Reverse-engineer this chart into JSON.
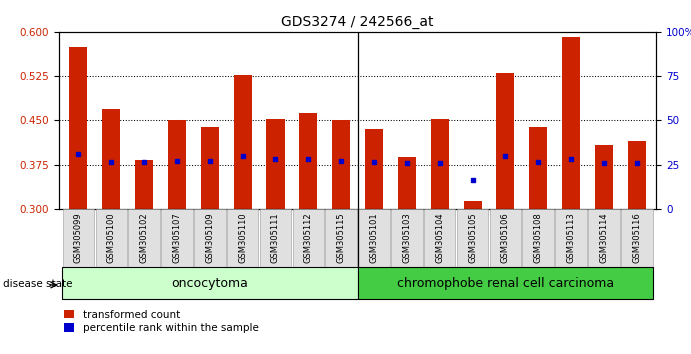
{
  "title": "GDS3274 / 242566_at",
  "samples": [
    "GSM305099",
    "GSM305100",
    "GSM305102",
    "GSM305107",
    "GSM305109",
    "GSM305110",
    "GSM305111",
    "GSM305112",
    "GSM305115",
    "GSM305101",
    "GSM305103",
    "GSM305104",
    "GSM305105",
    "GSM305106",
    "GSM305108",
    "GSM305113",
    "GSM305114",
    "GSM305116"
  ],
  "bar_values": [
    0.575,
    0.47,
    0.383,
    0.45,
    0.438,
    0.527,
    0.453,
    0.463,
    0.45,
    0.436,
    0.388,
    0.453,
    0.313,
    0.53,
    0.438,
    0.592,
    0.408,
    0.415
  ],
  "percentile_values": [
    0.393,
    0.379,
    0.379,
    0.381,
    0.381,
    0.39,
    0.384,
    0.384,
    0.381,
    0.379,
    0.377,
    0.377,
    0.349,
    0.39,
    0.379,
    0.384,
    0.377,
    0.378
  ],
  "ylim_left": [
    0.3,
    0.6
  ],
  "yticks_left": [
    0.3,
    0.375,
    0.45,
    0.525,
    0.6
  ],
  "yticks_right": [
    0,
    25,
    50,
    75,
    100
  ],
  "bar_color": "#cc2200",
  "percentile_color": "#0000cc",
  "oncocytoma_count": 9,
  "carcinoma_count": 9,
  "oncocytoma_label": "oncocytoma",
  "carcinoma_label": "chromophobe renal cell carcinoma",
  "disease_state_label": "disease state",
  "legend_bar_label": "transformed count",
  "legend_pct_label": "percentile rank within the sample",
  "oncocytoma_color": "#ccffcc",
  "carcinoma_color": "#44cc44",
  "tick_label_color_left": "#cc2200",
  "tick_label_color_right": "#0000cc",
  "grid_yticks": [
    0.375,
    0.45,
    0.525
  ]
}
